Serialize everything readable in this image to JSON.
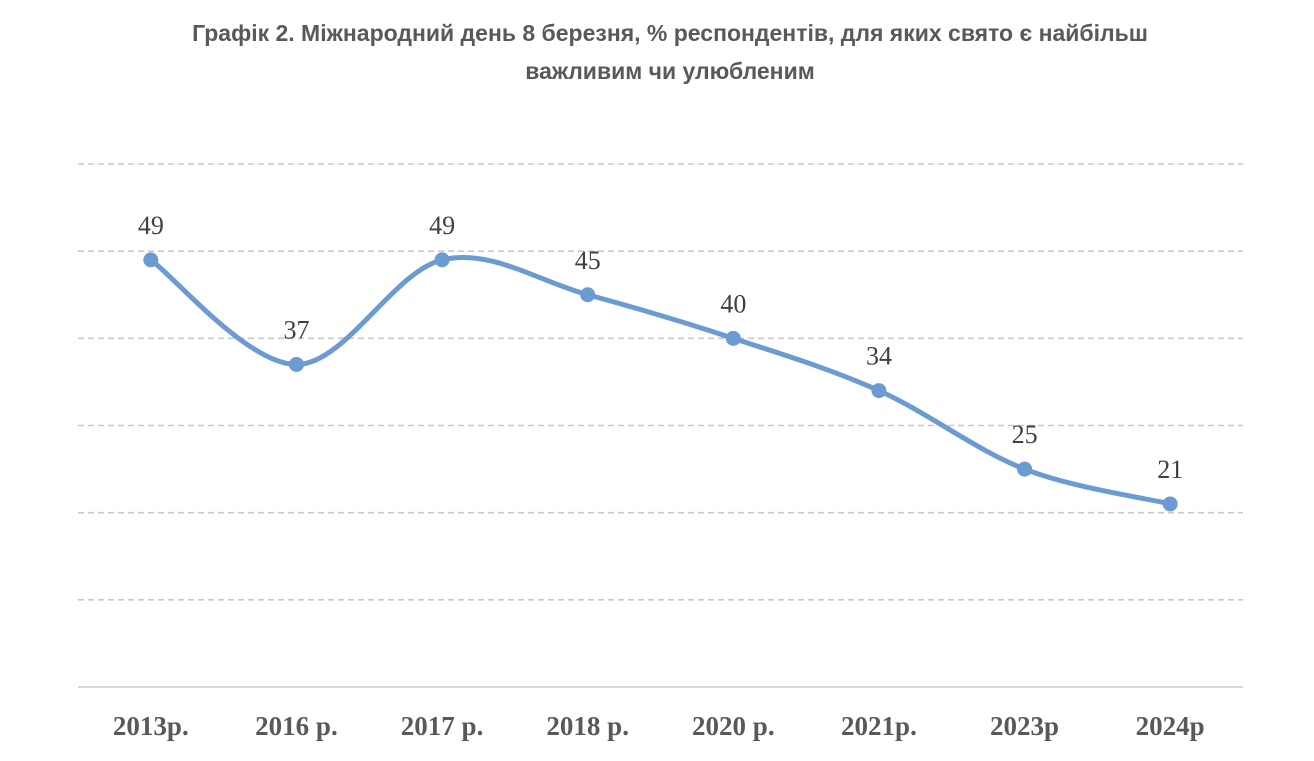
{
  "chart_data": {
    "type": "line",
    "title_line1": "Графік 2. Міжнародний день 8 березня, % респондентів, для яких свято є найбільш",
    "title_line2": "важливим чи улюбленим",
    "categories": [
      "2013р.",
      "2016 р.",
      "2017 р.",
      "2018 р.",
      "2020 р.",
      "2021р.",
      "2023р",
      "2024р"
    ],
    "series": [
      {
        "name": "% респондентів",
        "values": [
          49,
          37,
          49,
          45,
          40,
          34,
          25,
          21
        ],
        "data_labels": [
          "49",
          "37",
          "49",
          "45",
          "40",
          "34",
          "25",
          "21"
        ]
      }
    ],
    "xlabel": "",
    "ylabel": "",
    "ylim": [
      0,
      60
    ],
    "grid": true,
    "legend": "none",
    "line_color": "#6b9bd1"
  }
}
